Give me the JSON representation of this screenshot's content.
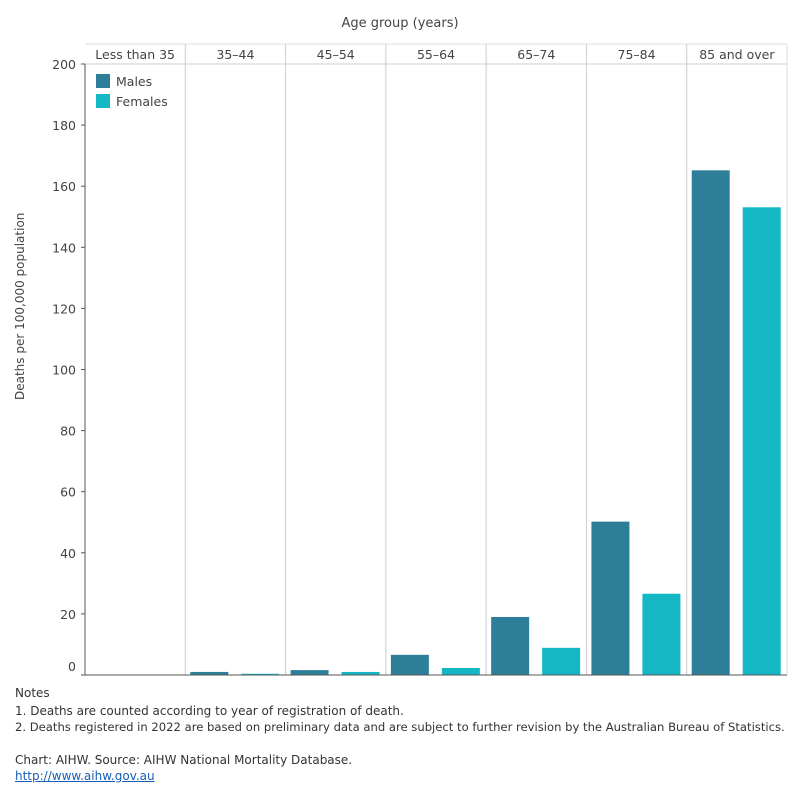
{
  "chart_data": {
    "type": "bar",
    "title": "",
    "xlabel": "Age group (years)",
    "ylabel": "Deaths per 100,000 population",
    "ylim": [
      0,
      200
    ],
    "yticks": [
      0,
      20,
      40,
      60,
      80,
      100,
      120,
      140,
      160,
      180,
      200
    ],
    "grid": "vertical column separators",
    "legend_position": "top-left",
    "categories": [
      "Less than 35",
      "35–44",
      "45–54",
      "55–64",
      "65–74",
      "75–84",
      "85 and over"
    ],
    "series": [
      {
        "name": "Males",
        "color": "#2d7f99",
        "values": [
          0.1,
          1.0,
          1.6,
          6.6,
          19.0,
          50.2,
          165.2
        ]
      },
      {
        "name": "Females",
        "color": "#14b8c5",
        "values": [
          0.05,
          0.4,
          1.0,
          2.3,
          8.9,
          26.6,
          153.1
        ]
      }
    ]
  },
  "notes": {
    "heading": "Notes",
    "lines": [
      "1. Deaths are counted according to year of registration of death.",
      "2. Deaths registered in 2022 are based on preliminary data and are subject to further revision by the Australian Bureau of Statistics."
    ],
    "source": "Chart: AIHW. Source: AIHW National Mortality Database.",
    "link": "http://www.aihw.gov.au"
  }
}
